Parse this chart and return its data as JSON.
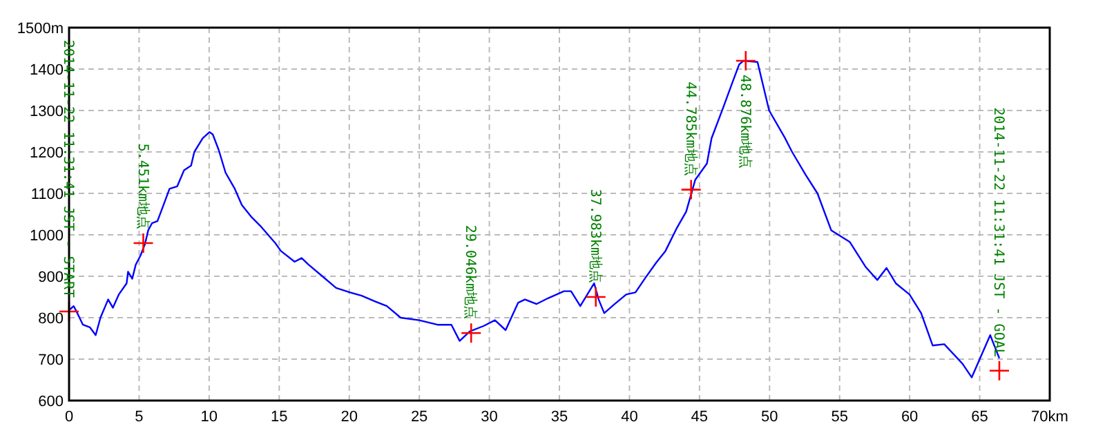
{
  "chart_data": {
    "type": "line",
    "xlim": [
      0,
      70
    ],
    "ylim": [
      600,
      1500
    ],
    "xticks": [
      0,
      5,
      10,
      15,
      20,
      25,
      30,
      35,
      40,
      45,
      50,
      55,
      60,
      65,
      {
        "value": 70,
        "label": "70km"
      }
    ],
    "yticks": [
      600,
      700,
      800,
      900,
      1000,
      1100,
      1200,
      1300,
      1400,
      {
        "value": 1500,
        "label": "1500m"
      }
    ],
    "grid": true,
    "series": [
      {
        "color": "#0000ff",
        "marker": "none",
        "x": [
          0.07,
          0.33,
          0.59,
          0.99,
          1.48,
          1.9,
          2.24,
          2.79,
          3.13,
          3.55,
          4.11,
          4.21,
          4.51,
          4.76,
          5.1,
          5.42,
          5.65,
          5.92,
          6.31,
          6.74,
          7.17,
          7.72,
          8.21,
          8.71,
          8.94,
          9.54,
          10.03,
          10.26,
          10.68,
          11.17,
          11.83,
          12.33,
          12.99,
          13.64,
          14.72,
          15.12,
          16.1,
          16.6,
          17.09,
          18.08,
          19.06,
          20.05,
          20.88,
          21.86,
          22.68,
          23.67,
          24.98,
          26.3,
          27.29,
          27.88,
          28.6,
          29.59,
          30.4,
          31.16,
          32.05,
          32.54,
          33.36,
          34.19,
          35.33,
          35.83,
          36.49,
          37.48,
          37.8,
          38.2,
          38.95,
          39.77,
          40.43,
          41.09,
          41.91,
          42.57,
          43.39,
          44.05,
          44.7,
          45.53,
          45.86,
          46.68,
          47.34,
          47.83,
          48.13,
          49.14,
          49.97,
          51.11,
          51.61,
          52.59,
          53.42,
          54.4,
          55.72,
          56.87,
          57.69,
          58.35,
          59.01,
          59.99,
          60.82,
          61.64,
          62.47,
          63.77,
          64.43,
          65.75,
          66.4
        ],
        "values": [
          820,
          828,
          811,
          783,
          777,
          758,
          800,
          844,
          824,
          856,
          883,
          911,
          894,
          928,
          950,
          978,
          1011,
          1028,
          1033,
          1072,
          1111,
          1117,
          1156,
          1167,
          1200,
          1233,
          1248,
          1242,
          1205,
          1150,
          1111,
          1072,
          1044,
          1022,
          980,
          961,
          935,
          944,
          928,
          900,
          872,
          861,
          853,
          839,
          828,
          800,
          794,
          783,
          783,
          744,
          767,
          780,
          794,
          770,
          836,
          844,
          833,
          847,
          864,
          864,
          828,
          883,
          844,
          811,
          833,
          856,
          861,
          894,
          933,
          961,
          1017,
          1056,
          1133,
          1172,
          1233,
          1306,
          1367,
          1411,
          1420,
          1417,
          1300,
          1233,
          1200,
          1144,
          1100,
          1011,
          983,
          922,
          891,
          920,
          883,
          856,
          811,
          733,
          736,
          689,
          656,
          758,
          702
        ]
      },
      {
        "type": "scatter",
        "color": "#ff0000",
        "marker": "cross",
        "x": [
          0,
          5.3,
          28.7,
          37.6,
          44.4,
          48.3,
          66.4
        ],
        "values": [
          815,
          980,
          763,
          850,
          1109,
          1420,
          672
        ]
      }
    ],
    "annotations": [
      {
        "text": "2014-11-22 11:31:41 JST - START",
        "x": 0,
        "y": 815
      },
      {
        "text": "5.451km地点",
        "x": 5.3,
        "y": 980
      },
      {
        "text": "29.046km地点",
        "x": 28.7,
        "y": 763
      },
      {
        "text": "37.983km地点",
        "x": 37.6,
        "y": 850
      },
      {
        "text": "44.785km地点",
        "x": 44.4,
        "y": 1109
      },
      {
        "text": "48.876km地点",
        "x": 48.3,
        "y": 1420
      },
      {
        "text": "2014-11-22 11:31:41 JST - GOAL",
        "x": 66.4,
        "y": 672
      }
    ]
  }
}
